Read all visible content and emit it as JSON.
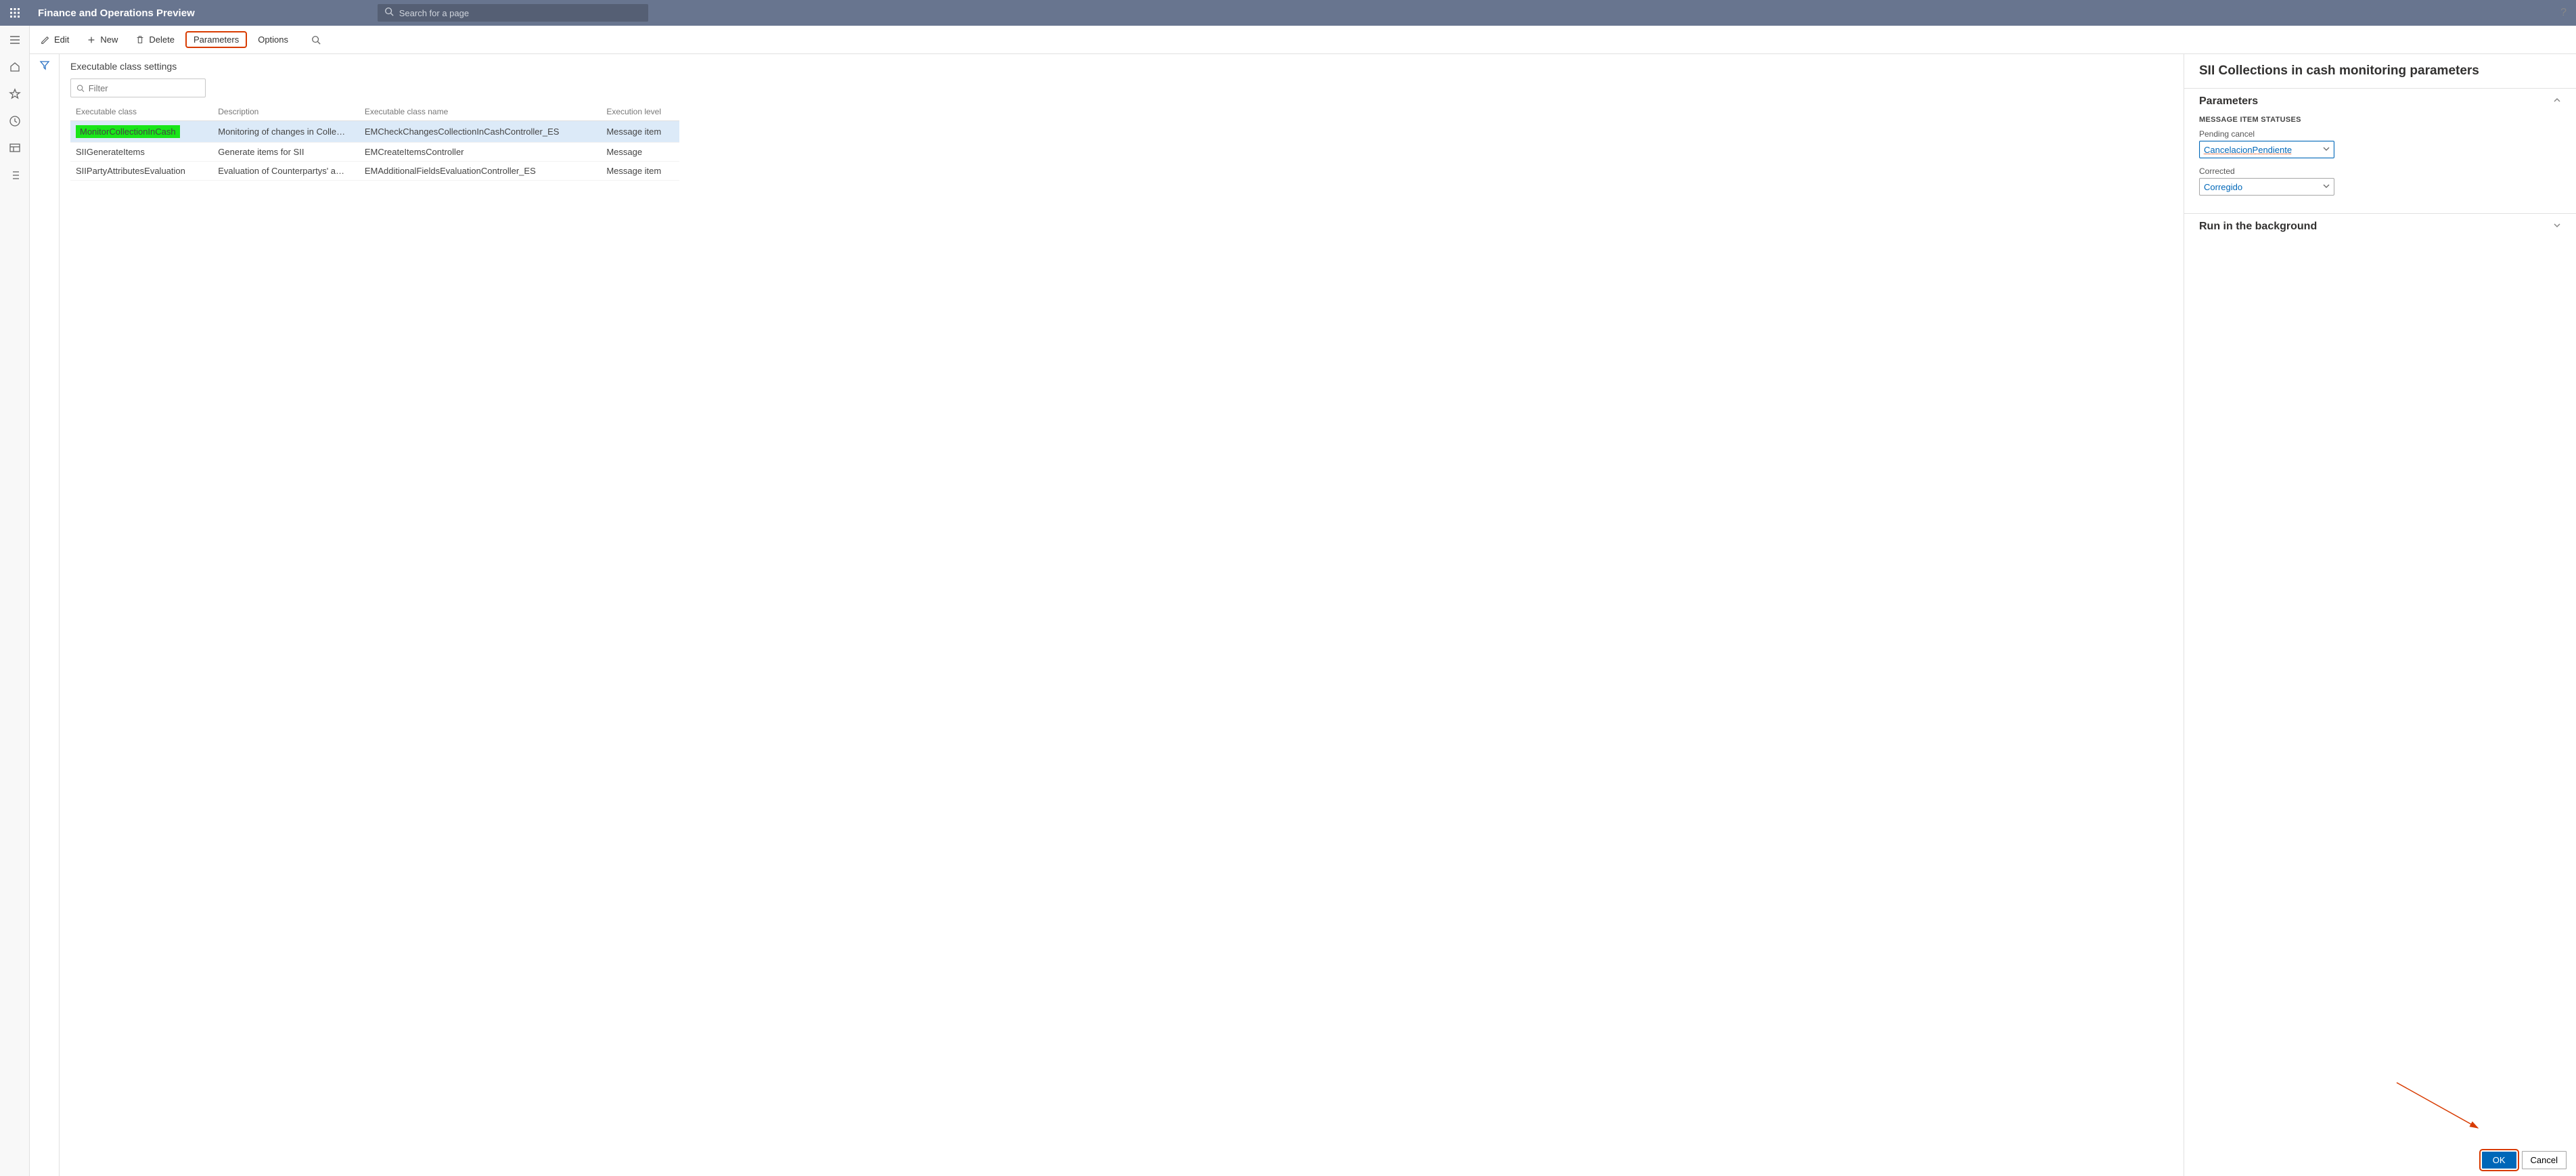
{
  "app": {
    "title": "Finance and Operations Preview",
    "search_placeholder": "Search for a page"
  },
  "toolbar": {
    "edit": "Edit",
    "new": "New",
    "delete": "Delete",
    "parameters": "Parameters",
    "options": "Options"
  },
  "page": {
    "heading": "Executable class settings",
    "filter_placeholder": "Filter"
  },
  "table": {
    "columns": {
      "exec": "Executable class",
      "desc": "Description",
      "name": "Executable class name",
      "lvl": "Execution level"
    },
    "rows": [
      {
        "exec": "MonitorCollectionInCash",
        "desc": "Monitoring of changes in Collec...",
        "name": "EMCheckChangesCollectionInCashController_ES",
        "lvl": "Message item",
        "selected": true,
        "highlight": true
      },
      {
        "exec": "SIIGenerateItems",
        "desc": "Generate items for SII",
        "name": "EMCreateItemsController",
        "lvl": "Message"
      },
      {
        "exec": "SIIPartyAttributesEvaluation",
        "desc": "Evaluation of Counterpartys' attr...",
        "name": "EMAdditionalFieldsEvaluationController_ES",
        "lvl": "Message item"
      }
    ]
  },
  "panel": {
    "title": "SII Collections in cash monitoring parameters",
    "section_params": "Parameters",
    "subhead": "MESSAGE ITEM STATUSES",
    "pending_label": "Pending cancel",
    "pending_value": "CancelacionPendiente",
    "corrected_label": "Corrected",
    "corrected_value": "Corregido",
    "section_bg": "Run in the background",
    "ok": "OK",
    "cancel": "Cancel"
  },
  "colors": {
    "topbar": "#68758f",
    "highlight_green": "#19e619",
    "highlight_border": "#d83b01",
    "primary_blue": "#0067b8",
    "link_blue": "#0067b8",
    "arrow_red": "#d83b01"
  }
}
